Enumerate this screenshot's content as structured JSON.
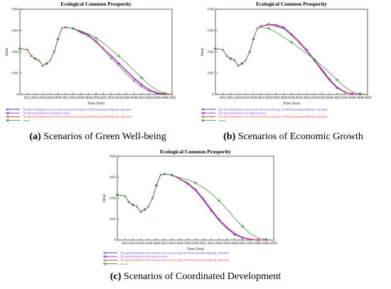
{
  "captions": {
    "a_letter": "(a)",
    "a_text": "Scenarios of Green Well-being",
    "b_letter": "(b)",
    "b_text": "Scenarios of Economic Growth",
    "c_letter": "(c)",
    "c_text": "Scenarios of Coordinated Development"
  },
  "colors": {
    "series1": "#3c3cc8",
    "series2": "#8a2be2",
    "series3": "#e0303a",
    "series4": "#3c9a3c"
  },
  "chart_data": [
    {
      "type": "line",
      "title": "Ecological Common Prosperity",
      "xlabel": "Time (Year)",
      "ylabel": "Dmnl",
      "xlim": [
        2010,
        2050
      ],
      "ylim": [
        0,
        0.04
      ],
      "x_ticks": [
        "2012",
        "2014",
        "2016",
        "2018",
        "2020",
        "2022",
        "2024",
        "2026",
        "2028",
        "2030",
        "2032",
        "2034",
        "2036",
        "2038",
        "2040",
        "2042",
        "2044",
        "2046",
        "2048",
        "2050"
      ],
      "y_ticks": [
        "0",
        "0.01",
        "0.02",
        "0.03",
        "0.04"
      ],
      "grid": false,
      "legend_position": "bottom",
      "x": [
        2010,
        2012,
        2013,
        2014,
        2015,
        2016,
        2017,
        2018,
        2019,
        2020,
        2021,
        2022,
        2024,
        2026,
        2028,
        2030,
        2032,
        2034,
        2036,
        2038,
        2040,
        2042,
        2044,
        2046,
        2048,
        2050
      ],
      "series": [
        {
          "name": "The rapid development of the economic and society;Ecology first;Welfare guarantee;Regional cooperation",
          "values": [
            0.0215,
            0.021,
            0.018,
            0.0168,
            0.016,
            0.0135,
            0.0145,
            0.016,
            0.02,
            0.026,
            0.031,
            0.0315,
            0.031,
            0.0295,
            0.028,
            0.025,
            0.0215,
            0.018,
            0.0145,
            0.011,
            0.0075,
            0.0045,
            0.002,
            0.0008,
            0.0002,
            0
          ]
        },
        {
          "name": "The rapid development of the digital economy",
          "values": [
            0.0215,
            0.021,
            0.018,
            0.0168,
            0.016,
            0.0135,
            0.0145,
            0.016,
            0.02,
            0.026,
            0.031,
            0.0315,
            0.031,
            0.029,
            0.0275,
            0.0245,
            0.021,
            0.017,
            0.0135,
            0.0098,
            0.0065,
            0.0035,
            0.0015,
            0.0005,
            0.0001,
            0
          ]
        },
        {
          "name": "The rapid development of the economic and society;Ecology first;Welfare guarantee;Regional cooperation",
          "values": [
            0.0215,
            0.021,
            0.018,
            0.0168,
            0.016,
            0.0135,
            0.0145,
            0.016,
            0.02,
            0.026,
            0.031,
            0.0315,
            0.031,
            0.0293,
            0.0278,
            0.025,
            0.0215,
            0.0183,
            0.0148,
            0.0112,
            0.0078,
            0.0048,
            0.0022,
            0.0009,
            0.0002,
            0
          ]
        },
        {
          "name": "current",
          "values": [
            0.0215,
            0.021,
            0.018,
            0.0168,
            0.016,
            0.0135,
            0.0145,
            0.016,
            0.02,
            0.026,
            0.031,
            0.0315,
            0.031,
            0.0298,
            0.0285,
            0.0265,
            0.024,
            0.021,
            0.018,
            0.0148,
            0.0112,
            0.0078,
            0.0045,
            0.002,
            0.0006,
            0
          ]
        }
      ]
    },
    {
      "type": "line",
      "title": "Ecological Common Prosperity",
      "xlabel": "Time (Year)",
      "ylabel": "Dmnl",
      "xlim": [
        2010,
        2050
      ],
      "ylim": [
        0,
        0.04
      ],
      "x_ticks": [
        "2012",
        "2014",
        "2016",
        "2018",
        "2020",
        "2022",
        "2024",
        "2026",
        "2028",
        "2030",
        "2032",
        "2034",
        "2036",
        "2038",
        "2040",
        "2042",
        "2044",
        "2046",
        "2048",
        "2050"
      ],
      "y_ticks": [
        "0",
        "0.01",
        "0.02",
        "0.03",
        "0.04"
      ],
      "grid": false,
      "legend_position": "bottom",
      "x": [
        2010,
        2012,
        2013,
        2014,
        2015,
        2016,
        2017,
        2018,
        2019,
        2020,
        2021,
        2022,
        2024,
        2026,
        2028,
        2030,
        2032,
        2034,
        2036,
        2038,
        2040,
        2042,
        2044,
        2046,
        2048,
        2050
      ],
      "series": [
        {
          "name": "The rapid development of the economic and society;Ecology first;Welfare guarantee;Regional cooperation",
          "values": [
            0.0215,
            0.021,
            0.018,
            0.0168,
            0.016,
            0.0135,
            0.0145,
            0.016,
            0.02,
            0.026,
            0.031,
            0.032,
            0.033,
            0.0325,
            0.031,
            0.028,
            0.0245,
            0.0205,
            0.016,
            0.011,
            0.0065,
            0.003,
            0.001,
            0.0002,
            0,
            0
          ]
        },
        {
          "name": "The rapid development of the digital economy",
          "values": [
            0.0215,
            0.021,
            0.018,
            0.0168,
            0.016,
            0.0135,
            0.0145,
            0.016,
            0.02,
            0.026,
            0.031,
            0.032,
            0.033,
            0.0328,
            0.0315,
            0.0285,
            0.025,
            0.021,
            0.0165,
            0.012,
            0.0072,
            0.0035,
            0.0012,
            0.0003,
            0,
            0
          ]
        },
        {
          "name": "The rapid development of the economic and society;Ecology first;Welfare guarantee;Regional cooperation",
          "values": [
            0.0215,
            0.021,
            0.018,
            0.0168,
            0.016,
            0.0135,
            0.0145,
            0.016,
            0.02,
            0.026,
            0.031,
            0.032,
            0.0325,
            0.032,
            0.0308,
            0.0278,
            0.0243,
            0.0203,
            0.016,
            0.0115,
            0.007,
            0.0033,
            0.0011,
            0.0002,
            0,
            0
          ]
        },
        {
          "name": "current",
          "values": [
            0.0215,
            0.021,
            0.018,
            0.0168,
            0.016,
            0.0135,
            0.0145,
            0.016,
            0.02,
            0.026,
            0.031,
            0.0315,
            0.031,
            0.0292,
            0.0268,
            0.0245,
            0.0218,
            0.0192,
            0.0165,
            0.0135,
            0.0102,
            0.0068,
            0.0035,
            0.0012,
            0.0003,
            0
          ]
        }
      ]
    },
    {
      "type": "line",
      "title": "Ecological Common Prosperity",
      "xlabel": "Time (Year)",
      "ylabel": "Dmnl",
      "xlim": [
        2010,
        2050
      ],
      "ylim": [
        0,
        0.04
      ],
      "x_ticks": [
        "2012",
        "2014",
        "2016",
        "2018",
        "2020",
        "2022",
        "2024",
        "2026",
        "2028",
        "2030",
        "2032",
        "2034",
        "2036",
        "2038",
        "2040",
        "2042",
        "2044",
        "2046",
        "2048",
        "2050"
      ],
      "y_ticks": [
        "0",
        "0.01",
        "0.02",
        "0.03",
        "0.04"
      ],
      "grid": false,
      "legend_position": "bottom",
      "x": [
        2010,
        2012,
        2013,
        2014,
        2015,
        2016,
        2017,
        2018,
        2019,
        2020,
        2021,
        2022,
        2024,
        2026,
        2028,
        2030,
        2032,
        2034,
        2036,
        2038,
        2040,
        2042,
        2044,
        2046,
        2048,
        2050
      ],
      "series": [
        {
          "name": "The rapid development of the economic and society;Ecology first;Welfare guarantee;Regional cooperation",
          "values": [
            0.0215,
            0.021,
            0.018,
            0.0168,
            0.016,
            0.0135,
            0.0145,
            0.016,
            0.02,
            0.026,
            0.031,
            0.0315,
            0.031,
            0.0292,
            0.0272,
            0.024,
            0.0195,
            0.0145,
            0.0098,
            0.006,
            0.003,
            0.0012,
            0.0003,
            0,
            0,
            0
          ]
        },
        {
          "name": "The rapid development of the digital economy",
          "values": [
            0.0215,
            0.021,
            0.018,
            0.0168,
            0.016,
            0.0135,
            0.0145,
            0.016,
            0.02,
            0.026,
            0.031,
            0.0315,
            0.031,
            0.029,
            0.0268,
            0.0235,
            0.019,
            0.014,
            0.0092,
            0.0055,
            0.0026,
            0.001,
            0.0002,
            0,
            0,
            0
          ]
        },
        {
          "name": "The rapid development of the economic and society;Ecology first;Welfare guarantee;Regional cooperation",
          "values": [
            0.0215,
            0.021,
            0.018,
            0.0168,
            0.016,
            0.0135,
            0.0145,
            0.016,
            0.02,
            0.026,
            0.031,
            0.0315,
            0.031,
            0.0293,
            0.0273,
            0.0242,
            0.0198,
            0.0148,
            0.01,
            0.0062,
            0.0032,
            0.0013,
            0.0004,
            0,
            0,
            0
          ]
        },
        {
          "name": "current",
          "values": [
            0.0215,
            0.021,
            0.018,
            0.0168,
            0.016,
            0.0135,
            0.0145,
            0.016,
            0.02,
            0.026,
            0.031,
            0.0315,
            0.031,
            0.0298,
            0.0288,
            0.0272,
            0.025,
            0.0222,
            0.0188,
            0.0148,
            0.0105,
            0.0065,
            0.003,
            0.001,
            0.0002,
            0
          ]
        }
      ]
    }
  ]
}
